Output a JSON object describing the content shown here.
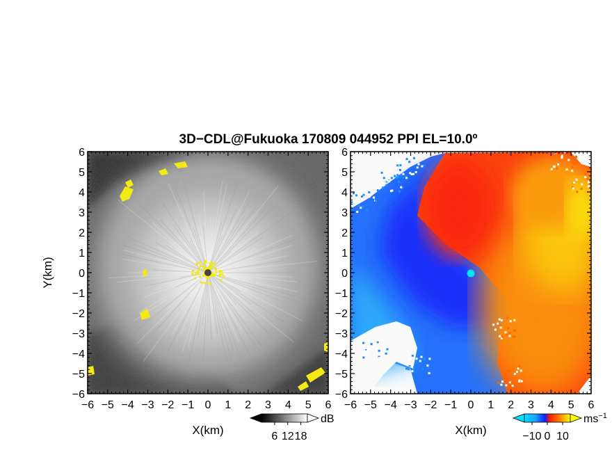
{
  "title": "3D−CDL@Fukuoka 170809 044952 PPI EL=10.0º",
  "chart_data": [
    {
      "type": "heatmap",
      "panel": "left",
      "quantity": "SNR",
      "colormap": "gray",
      "xlabel": "X(km)",
      "ylabel": "Y(km)",
      "xlim": [
        -6,
        6
      ],
      "ylim": [
        -6,
        6
      ],
      "xticks": [
        "−6",
        "−5",
        "−4",
        "−3",
        "−2",
        "−1",
        "0",
        "1",
        "2",
        "3",
        "4",
        "5",
        "6"
      ],
      "yticks": [
        "6",
        "5",
        "4",
        "3",
        "2",
        "1",
        "0",
        "−1",
        "−2",
        "−3",
        "−4",
        "−5",
        "−6"
      ],
      "colorbar": {
        "unit": "dB",
        "ticks": [
          "6",
          "12",
          "18"
        ],
        "range": [
          0,
          21
        ]
      },
      "radar_site": [
        0,
        0
      ],
      "highlight_color": "#f0e614"
    },
    {
      "type": "heatmap",
      "panel": "right",
      "quantity": "Doppler velocity",
      "colormap": "blue-red-yellow",
      "xlabel": "X(km)",
      "ylabel": "",
      "xlim": [
        -6,
        6
      ],
      "ylim": [
        -6,
        6
      ],
      "xticks": [
        "−6",
        "−5",
        "−4",
        "−3",
        "−2",
        "−1",
        "0",
        "1",
        "2",
        "3",
        "4",
        "5",
        "6"
      ],
      "yticks": [
        "6",
        "5",
        "4",
        "3",
        "2",
        "1",
        "0",
        "−1",
        "−2",
        "−3",
        "−4",
        "−5",
        "−6"
      ],
      "colorbar": {
        "unit": "ms",
        "unit_sup": "−1",
        "ticks": [
          "−10",
          "0",
          "10"
        ],
        "range": [
          -15,
          15
        ]
      },
      "radar_site": [
        0,
        0
      ],
      "site_color": "#00e5f0"
    }
  ]
}
